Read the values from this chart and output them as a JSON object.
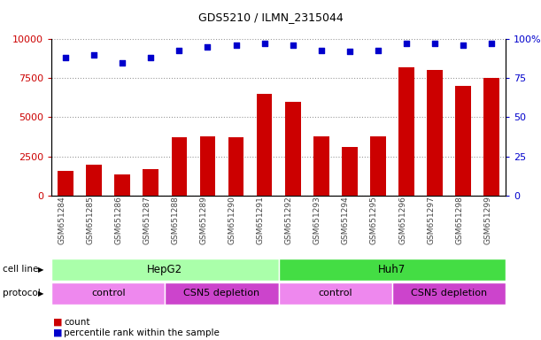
{
  "title": "GDS5210 / ILMN_2315044",
  "samples": [
    "GSM651284",
    "GSM651285",
    "GSM651286",
    "GSM651287",
    "GSM651288",
    "GSM651289",
    "GSM651290",
    "GSM651291",
    "GSM651292",
    "GSM651293",
    "GSM651294",
    "GSM651295",
    "GSM651296",
    "GSM651297",
    "GSM651298",
    "GSM651299"
  ],
  "counts": [
    1600,
    1950,
    1350,
    1700,
    3700,
    3800,
    3700,
    6500,
    6000,
    3800,
    3100,
    3800,
    8200,
    8000,
    7000,
    7500
  ],
  "percentile_ranks": [
    88,
    90,
    85,
    88,
    93,
    95,
    96,
    97,
    96,
    93,
    92,
    93,
    97,
    97,
    96,
    97
  ],
  "bar_color": "#cc0000",
  "dot_color": "#0000cc",
  "ylim_left": [
    0,
    10000
  ],
  "ylim_right": [
    0,
    100
  ],
  "yticks_left": [
    0,
    2500,
    5000,
    7500,
    10000
  ],
  "yticks_right": [
    0,
    25,
    50,
    75,
    100
  ],
  "cell_line_groups": [
    {
      "label": "HepG2",
      "start": 0,
      "end": 8,
      "color": "#aaffaa"
    },
    {
      "label": "Huh7",
      "start": 8,
      "end": 16,
      "color": "#44dd44"
    }
  ],
  "protocol_groups": [
    {
      "label": "control",
      "start": 0,
      "end": 4,
      "color": "#ee88ee"
    },
    {
      "label": "CSN5 depletion",
      "start": 4,
      "end": 8,
      "color": "#cc44cc"
    },
    {
      "label": "control",
      "start": 8,
      "end": 12,
      "color": "#ee88ee"
    },
    {
      "label": "CSN5 depletion",
      "start": 12,
      "end": 16,
      "color": "#cc44cc"
    }
  ],
  "legend_count_label": "count",
  "legend_percentile_label": "percentile rank within the sample",
  "cell_line_label": "cell line",
  "protocol_label": "protocol",
  "grid_color": "#999999",
  "xticklabel_color": "#444444",
  "bg_color": "#ffffff",
  "title_fontsize": 9,
  "bar_width": 0.55
}
